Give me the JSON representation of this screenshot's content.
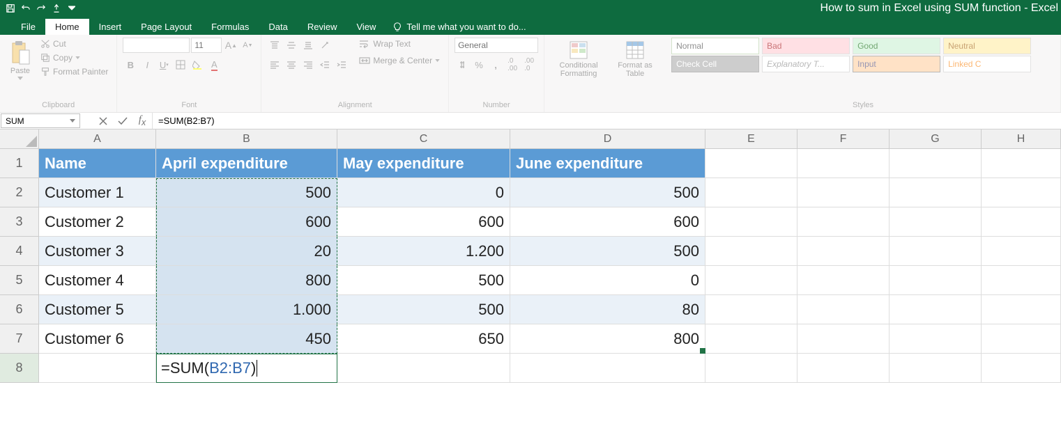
{
  "title": "How to sum in Excel using SUM function - Excel",
  "tabs": [
    "File",
    "Home",
    "Insert",
    "Page Layout",
    "Formulas",
    "Data",
    "Review",
    "View"
  ],
  "active_tab": "Home",
  "tellme": "Tell me what you want to do...",
  "clipboard": {
    "paste": "Paste",
    "cut": "Cut",
    "copy": "Copy",
    "painter": "Format Painter",
    "label": "Clipboard"
  },
  "font": {
    "name": "",
    "size": "11",
    "label": "Font"
  },
  "alignment": {
    "wrap": "Wrap Text",
    "merge": "Merge & Center",
    "label": "Alignment"
  },
  "number": {
    "format": "General",
    "label": "Number"
  },
  "cond": {
    "cond": "Conditional Formatting",
    "table": "Format as Table",
    "label": ""
  },
  "styles": {
    "cells": [
      "Normal",
      "Bad",
      "Good",
      "Neutral",
      "Check Cell",
      "Explanatory T...",
      "Input",
      "Linked C"
    ],
    "label": "Styles"
  },
  "name_box": "SUM",
  "formula": "=SUM(B2:B7)",
  "columns": [
    "A",
    "B",
    "C",
    "D",
    "E",
    "F",
    "G",
    "H"
  ],
  "col_widths": {
    "A": 168,
    "B": 260,
    "C": 248,
    "D": 280,
    "E": 132,
    "F": 132,
    "G": 132,
    "H": 114
  },
  "rows": [
    "1",
    "2",
    "3",
    "4",
    "5",
    "6",
    "7",
    "8"
  ],
  "headers": [
    "Name",
    "April expenditure",
    "May expenditure",
    "June expenditure"
  ],
  "data": [
    [
      "Customer 1",
      "500",
      "0",
      "500"
    ],
    [
      "Customer 2",
      "600",
      "600",
      "600"
    ],
    [
      "Customer 3",
      "20",
      "1.200",
      "500"
    ],
    [
      "Customer 4",
      "800",
      "500",
      "0"
    ],
    [
      "Customer 5",
      "1.000",
      "500",
      "80"
    ],
    [
      "Customer 6",
      "450",
      "650",
      "800"
    ]
  ],
  "edit_cell": {
    "prefix": "=SUM(",
    "ref": "B2:B7",
    "suffix": ")"
  },
  "colors": {
    "titlebar": "#0e6b3f",
    "header_fill": "#5b9bd5",
    "alt_fill": "#eaf1f8",
    "select_fill": "#d5e3f0",
    "accent": "#217346"
  },
  "style_colors": {
    "Normal": {
      "bg": "#ffffff",
      "fg": "#333",
      "border": "#b0cda0"
    },
    "Bad": {
      "bg": "#ffc7ce",
      "fg": "#9c0006",
      "border": "#ccc"
    },
    "Good": {
      "bg": "#c6efce",
      "fg": "#006100",
      "border": "#ccc"
    },
    "Neutral": {
      "bg": "#ffeb9c",
      "fg": "#9c5700",
      "border": "#ccc"
    },
    "Check Cell": {
      "bg": "#a5a5a5",
      "fg": "#fff",
      "border": "#888"
    },
    "Explanatory T...": {
      "bg": "#ffffff",
      "fg": "#7f7f7f",
      "border": "#ccc",
      "italic": true
    },
    "Input": {
      "bg": "#ffcc99",
      "fg": "#3f3f76",
      "border": "#7f7f7f"
    },
    "Linked C": {
      "bg": "#ffffff",
      "fg": "#fa7d00",
      "border": "#ccc"
    }
  }
}
